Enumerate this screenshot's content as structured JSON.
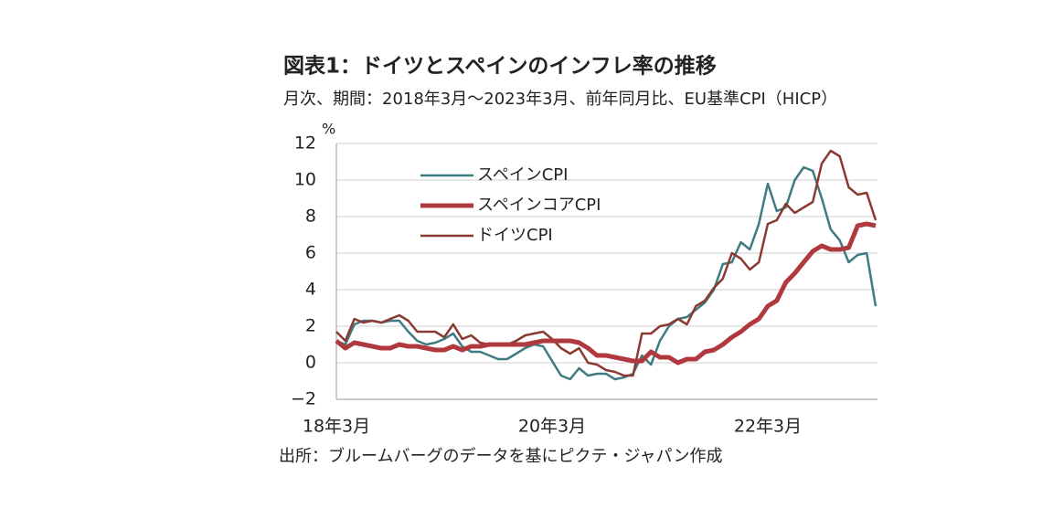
{
  "chart_data": {
    "type": "line",
    "title": "図表1：ドイツとスペインのインフレ率の推移",
    "subtitle": "月次、期間：2018年3月～2023年3月、前年同月比、EU基準CPI（HICP）",
    "y_unit": "%",
    "source": "出所：ブルームバーグのデータを基にピクテ・ジャパン作成",
    "categories": [
      "18年3月",
      null,
      null,
      null,
      null,
      null,
      null,
      null,
      null,
      null,
      null,
      null,
      null,
      null,
      null,
      null,
      null,
      null,
      null,
      null,
      null,
      null,
      null,
      null,
      "20年3月",
      null,
      null,
      null,
      null,
      null,
      null,
      null,
      null,
      null,
      null,
      null,
      null,
      null,
      null,
      null,
      null,
      null,
      null,
      null,
      null,
      null,
      null,
      null,
      "22年3月",
      null,
      null,
      null,
      null,
      null,
      null,
      null,
      null,
      null,
      null,
      null,
      null
    ],
    "series": [
      {
        "name": "スペインCPI",
        "color": "#3f7b80",
        "width": 2.5,
        "values": [
          1.2,
          1.0,
          2.1,
          2.3,
          2.3,
          2.2,
          2.3,
          2.3,
          1.7,
          1.2,
          1.0,
          1.1,
          1.3,
          1.6,
          0.9,
          0.6,
          0.6,
          0.4,
          0.2,
          0.2,
          0.5,
          0.8,
          1.0,
          0.9,
          0.1,
          -0.7,
          -0.9,
          -0.3,
          -0.7,
          -0.6,
          -0.6,
          -0.9,
          -0.8,
          -0.6,
          0.4,
          -0.1,
          1.2,
          2.0,
          2.4,
          2.5,
          2.9,
          3.3,
          4.0,
          5.4,
          5.5,
          6.6,
          6.2,
          7.6,
          9.8,
          8.3,
          8.5,
          10.0,
          10.7,
          10.5,
          9.0,
          7.3,
          6.7,
          5.5,
          5.9,
          6.0,
          3.1
        ]
      },
      {
        "name": "スペインコアCPI",
        "color": "#b0393f",
        "width": 5,
        "values": [
          1.2,
          0.8,
          1.1,
          1.0,
          0.9,
          0.8,
          0.8,
          1.0,
          0.9,
          0.9,
          0.8,
          0.7,
          0.7,
          0.9,
          0.7,
          0.9,
          0.9,
          1.0,
          1.0,
          1.0,
          1.0,
          1.0,
          1.1,
          1.2,
          1.2,
          1.2,
          1.2,
          1.1,
          0.8,
          0.4,
          0.4,
          0.3,
          0.2,
          0.1,
          0.1,
          0.6,
          0.3,
          0.3,
          0.0,
          0.2,
          0.2,
          0.6,
          0.7,
          1.0,
          1.4,
          1.7,
          2.1,
          2.4,
          3.1,
          3.4,
          4.4,
          4.9,
          5.5,
          6.1,
          6.4,
          6.2,
          6.2,
          6.3,
          7.5,
          7.6,
          7.5
        ]
      },
      {
        "name": "ドイツCPI",
        "color": "#8b3a32",
        "width": 2.5,
        "values": [
          1.7,
          1.2,
          2.4,
          2.2,
          2.3,
          2.2,
          2.4,
          2.6,
          2.3,
          1.7,
          1.7,
          1.7,
          1.4,
          2.1,
          1.3,
          1.5,
          1.1,
          1.0,
          1.0,
          1.0,
          1.2,
          1.5,
          1.6,
          1.7,
          1.3,
          0.8,
          0.5,
          0.8,
          0.0,
          -0.1,
          -0.4,
          -0.5,
          -0.7,
          -0.7,
          1.6,
          1.6,
          2.0,
          2.1,
          2.4,
          2.1,
          3.1,
          3.4,
          4.1,
          4.6,
          6.0,
          5.7,
          5.1,
          5.5,
          7.6,
          7.8,
          8.7,
          8.2,
          8.5,
          8.8,
          10.9,
          11.6,
          11.3,
          9.6,
          9.2,
          9.3,
          7.8
        ]
      }
    ],
    "ylim": [
      -2,
      12
    ],
    "yticks": [
      {
        "value": -2,
        "label": "−2"
      },
      0,
      2,
      4,
      6,
      8,
      10,
      12
    ],
    "grid": true
  }
}
